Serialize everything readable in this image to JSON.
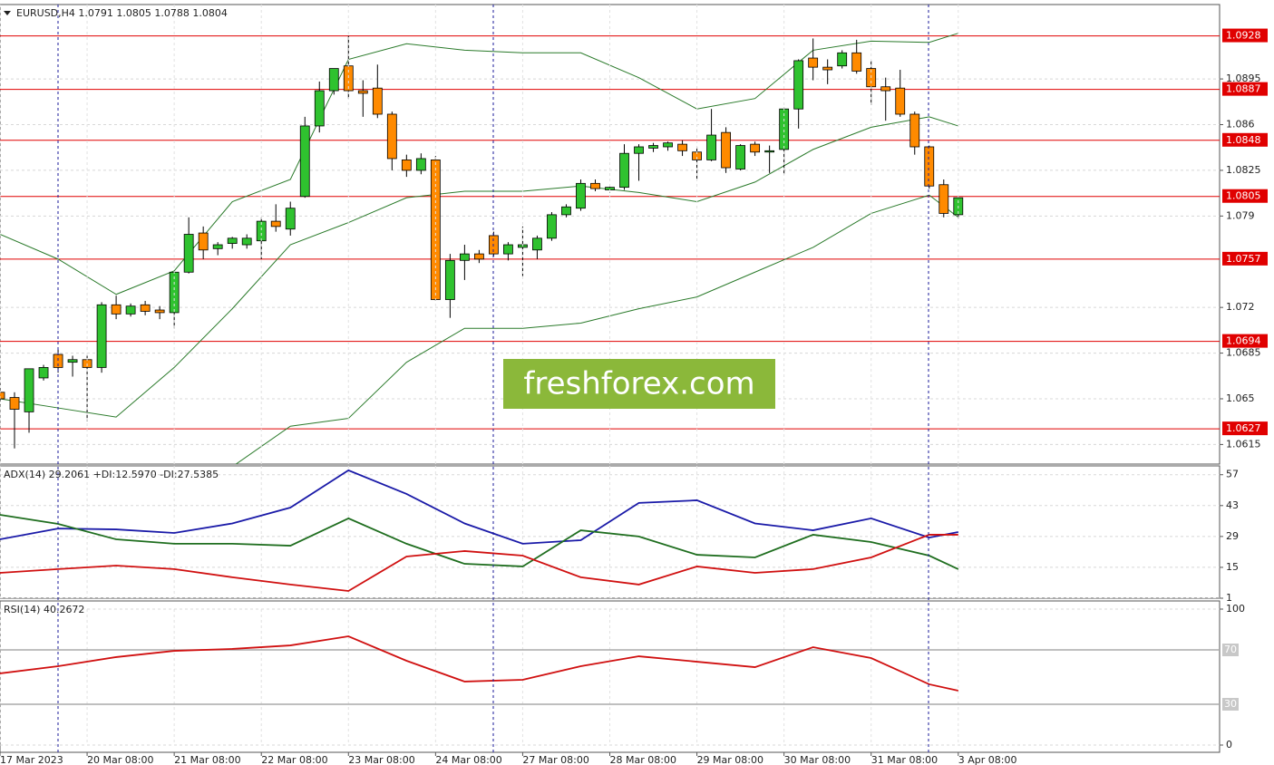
{
  "chart_data": [
    {
      "type": "candlestick",
      "title": "EURUSD,H4  1.0791 1.0805 1.0788 1.0804",
      "xlim": [
        0,
        84
      ],
      "ylim": [
        1.06,
        1.0952
      ],
      "yticks": [
        1.0615,
        1.065,
        1.0685,
        1.072,
        1.079,
        1.0825,
        1.086,
        1.0895
      ],
      "xticks": [
        {
          "value": 0,
          "label": "17 Mar 2023"
        },
        {
          "value": 6,
          "label": "20 Mar 08:00"
        },
        {
          "value": 12,
          "label": "21 Mar 08:00"
        },
        {
          "value": 18,
          "label": "22 Mar 08:00"
        },
        {
          "value": 24,
          "label": "23 Mar 08:00"
        },
        {
          "value": 30,
          "label": "24 Mar 08:00"
        },
        {
          "value": 36,
          "label": "27 Mar 08:00"
        },
        {
          "value": 42,
          "label": "28 Mar 08:00"
        },
        {
          "value": 48,
          "label": "29 Mar 08:00"
        },
        {
          "value": 54,
          "label": "30 Mar 08:00"
        },
        {
          "value": 60,
          "label": "31 Mar 08:00"
        },
        {
          "value": 66,
          "label": "3 Apr 08:00"
        }
      ],
      "grid": true,
      "up_color": "#2fc22f",
      "down_color": "#ff8a00",
      "open": [
        1.0655,
        1.0651,
        1.064,
        1.0666,
        1.0684,
        1.0678,
        1.068,
        1.0674,
        1.0722,
        1.0715,
        1.0722,
        1.0718,
        1.0716,
        1.0747,
        1.0777,
        1.0765,
        1.0769,
        1.0768,
        1.0771,
        1.0786,
        1.078,
        1.0805,
        1.0859,
        1.0886,
        1.0905,
        1.0886,
        1.0888,
        1.0868,
        1.0833,
        1.0825,
        1.0833,
        1.0726,
        1.0756,
        1.0761,
        1.0775,
        1.0761,
        1.0766,
        1.0764,
        1.0773,
        1.0791,
        1.0796,
        1.0815,
        1.081,
        1.0812,
        1.0838,
        1.0842,
        1.0843,
        1.0845,
        1.0839,
        1.0833,
        1.0854,
        1.0826,
        1.0845,
        1.0839,
        1.0841,
        1.0872,
        1.0911,
        1.0904,
        1.0905,
        1.0915,
        1.0903,
        1.0889,
        1.0888,
        1.0868,
        1.0843,
        1.0814,
        1.0791
      ],
      "high": [
        1.0662,
        1.0655,
        1.0673,
        1.0676,
        1.0688,
        1.0683,
        1.0683,
        1.0724,
        1.0729,
        1.0723,
        1.0725,
        1.0721,
        1.0748,
        1.0789,
        1.0782,
        1.077,
        1.0774,
        1.0776,
        1.0789,
        1.0799,
        1.0801,
        1.0866,
        1.0893,
        1.0903,
        1.0928,
        1.0894,
        1.0906,
        1.087,
        1.0837,
        1.0838,
        1.0836,
        1.0761,
        1.0768,
        1.0764,
        1.0778,
        1.077,
        1.0782,
        1.0775,
        1.0793,
        1.0799,
        1.0818,
        1.0818,
        1.0813,
        1.0845,
        1.0845,
        1.0846,
        1.0847,
        1.0848,
        1.0843,
        1.0872,
        1.0858,
        1.0845,
        1.0847,
        1.0844,
        1.0873,
        1.091,
        1.0926,
        1.091,
        1.0917,
        1.0925,
        1.0909,
        1.0896,
        1.0902,
        1.087,
        1.0844,
        1.0818,
        1.0805
      ],
      "low": [
        1.0645,
        1.0612,
        1.0624,
        1.0664,
        1.067,
        1.0667,
        1.0633,
        1.067,
        1.0711,
        1.0713,
        1.0714,
        1.0711,
        1.0704,
        1.0746,
        1.0757,
        1.076,
        1.0765,
        1.0765,
        1.0757,
        1.0778,
        1.0775,
        1.0804,
        1.0854,
        1.0883,
        1.088,
        1.0866,
        1.0865,
        1.0825,
        1.082,
        1.0822,
        1.0725,
        1.0712,
        1.0741,
        1.0754,
        1.0759,
        1.0756,
        1.0744,
        1.0757,
        1.0771,
        1.0789,
        1.0794,
        1.0809,
        1.0808,
        1.081,
        1.0817,
        1.0839,
        1.084,
        1.0836,
        1.0818,
        1.0832,
        1.0823,
        1.0825,
        1.0836,
        1.0823,
        1.0822,
        1.0857,
        1.0894,
        1.0891,
        1.0903,
        1.0899,
        1.0875,
        1.0863,
        1.0866,
        1.0837,
        1.0811,
        1.0789,
        1.0788
      ],
      "close": [
        1.065,
        1.0642,
        1.0673,
        1.0674,
        1.0674,
        1.068,
        1.0674,
        1.0722,
        1.0715,
        1.0721,
        1.0717,
        1.0716,
        1.0747,
        1.0776,
        1.0764,
        1.0768,
        1.0773,
        1.0773,
        1.0786,
        1.0782,
        1.0796,
        1.0859,
        1.0886,
        1.0903,
        1.0886,
        1.0884,
        1.0868,
        1.0834,
        1.0825,
        1.0834,
        1.0726,
        1.0756,
        1.0761,
        1.0757,
        1.0761,
        1.0768,
        1.0768,
        1.0773,
        1.0791,
        1.0797,
        1.0815,
        1.0811,
        1.0812,
        1.0838,
        1.0843,
        1.0844,
        1.0846,
        1.084,
        1.0833,
        1.0852,
        1.0827,
        1.0844,
        1.0839,
        1.084,
        1.0872,
        1.0909,
        1.0904,
        1.0902,
        1.0915,
        1.0901,
        1.0889,
        1.0886,
        1.0868,
        1.0843,
        1.0813,
        1.0792,
        1.0804
      ],
      "bands": {
        "color": "#2a7a2a",
        "x": [
          0,
          4,
          8,
          12,
          16,
          20,
          24,
          28,
          32,
          36,
          40,
          44,
          48,
          52,
          56,
          60,
          64,
          66
        ],
        "upper": [
          1.0776,
          1.0757,
          1.073,
          1.0748,
          1.0801,
          1.0818,
          1.091,
          1.0922,
          1.0917,
          1.0915,
          1.0915,
          1.0896,
          1.0872,
          1.088,
          1.0917,
          1.0924,
          1.0923,
          1.093
        ],
        "middle": [
          1.065,
          1.0643,
          1.0636,
          1.0674,
          1.0719,
          1.0768,
          1.0785,
          1.0804,
          1.0809,
          1.0809,
          1.0813,
          1.0808,
          1.0801,
          1.0816,
          1.0841,
          1.0858,
          1.0866,
          1.0859
        ],
        "lower": [
          null,
          null,
          null,
          null,
          1.0598,
          1.0629,
          1.0635,
          1.0678,
          1.0704,
          1.0704,
          1.0708,
          1.0719,
          1.0728,
          1.0747,
          1.0766,
          1.0792,
          1.0806,
          1.0789
        ]
      },
      "levels": [
        1.0928,
        1.0887,
        1.0848,
        1.0805,
        1.0757,
        1.0694,
        1.0627
      ],
      "level_color": "#e00000",
      "watermark": "freshforex.com"
    },
    {
      "type": "line",
      "title": "ADX(14) 29.2061 +DI:12.5970 -DI:27.5385",
      "xlim": [
        0,
        84
      ],
      "ylim": [
        1,
        61
      ],
      "yticks": [
        1,
        15,
        29,
        43,
        57
      ],
      "grid": true,
      "x": [
        0,
        4,
        8,
        12,
        16,
        20,
        24,
        28,
        32,
        36,
        40,
        44,
        48,
        52,
        56,
        60,
        64,
        66
      ],
      "series": [
        {
          "color": "#1a1aa8",
          "values": [
            27.7,
            32.6,
            32.2,
            30.6,
            34.9,
            42.1,
            59.0,
            48.3,
            34.9,
            25.7,
            27.3,
            44.2,
            45.4,
            34.9,
            31.8,
            37.2,
            28.5,
            31.0
          ]
        },
        {
          "color": "#1f6e1f",
          "values": [
            38.8,
            34.7,
            27.7,
            25.7,
            25.7,
            24.8,
            37.2,
            25.7,
            16.6,
            15.4,
            31.8,
            29.0,
            20.7,
            19.5,
            29.8,
            26.5,
            20.3,
            14.2
          ]
        },
        {
          "color": "#d01010",
          "values": [
            12.5,
            14.2,
            15.8,
            14.2,
            10.5,
            7.2,
            4.3,
            19.9,
            22.4,
            20.3,
            10.5,
            7.2,
            15.4,
            12.5,
            14.2,
            19.5,
            29.8,
            29.8
          ]
        }
      ]
    },
    {
      "type": "line",
      "title": "RSI(14) 40.2672",
      "xlim": [
        0,
        84
      ],
      "ylim": [
        0,
        100
      ],
      "yticks": [
        0,
        100
      ],
      "levels": [
        70,
        30
      ],
      "grid": true,
      "x": [
        0,
        4,
        8,
        12,
        16,
        20,
        24,
        28,
        32,
        36,
        40,
        44,
        48,
        52,
        56,
        60,
        64,
        66
      ],
      "series": [
        {
          "color": "#d01010",
          "values": [
            52.7,
            58.0,
            64.7,
            69.3,
            70.7,
            73.3,
            80.0,
            62.0,
            46.7,
            48.0,
            58.0,
            65.3,
            61.3,
            57.3,
            72.0,
            64.0,
            44.7,
            40.0
          ]
        }
      ]
    }
  ]
}
